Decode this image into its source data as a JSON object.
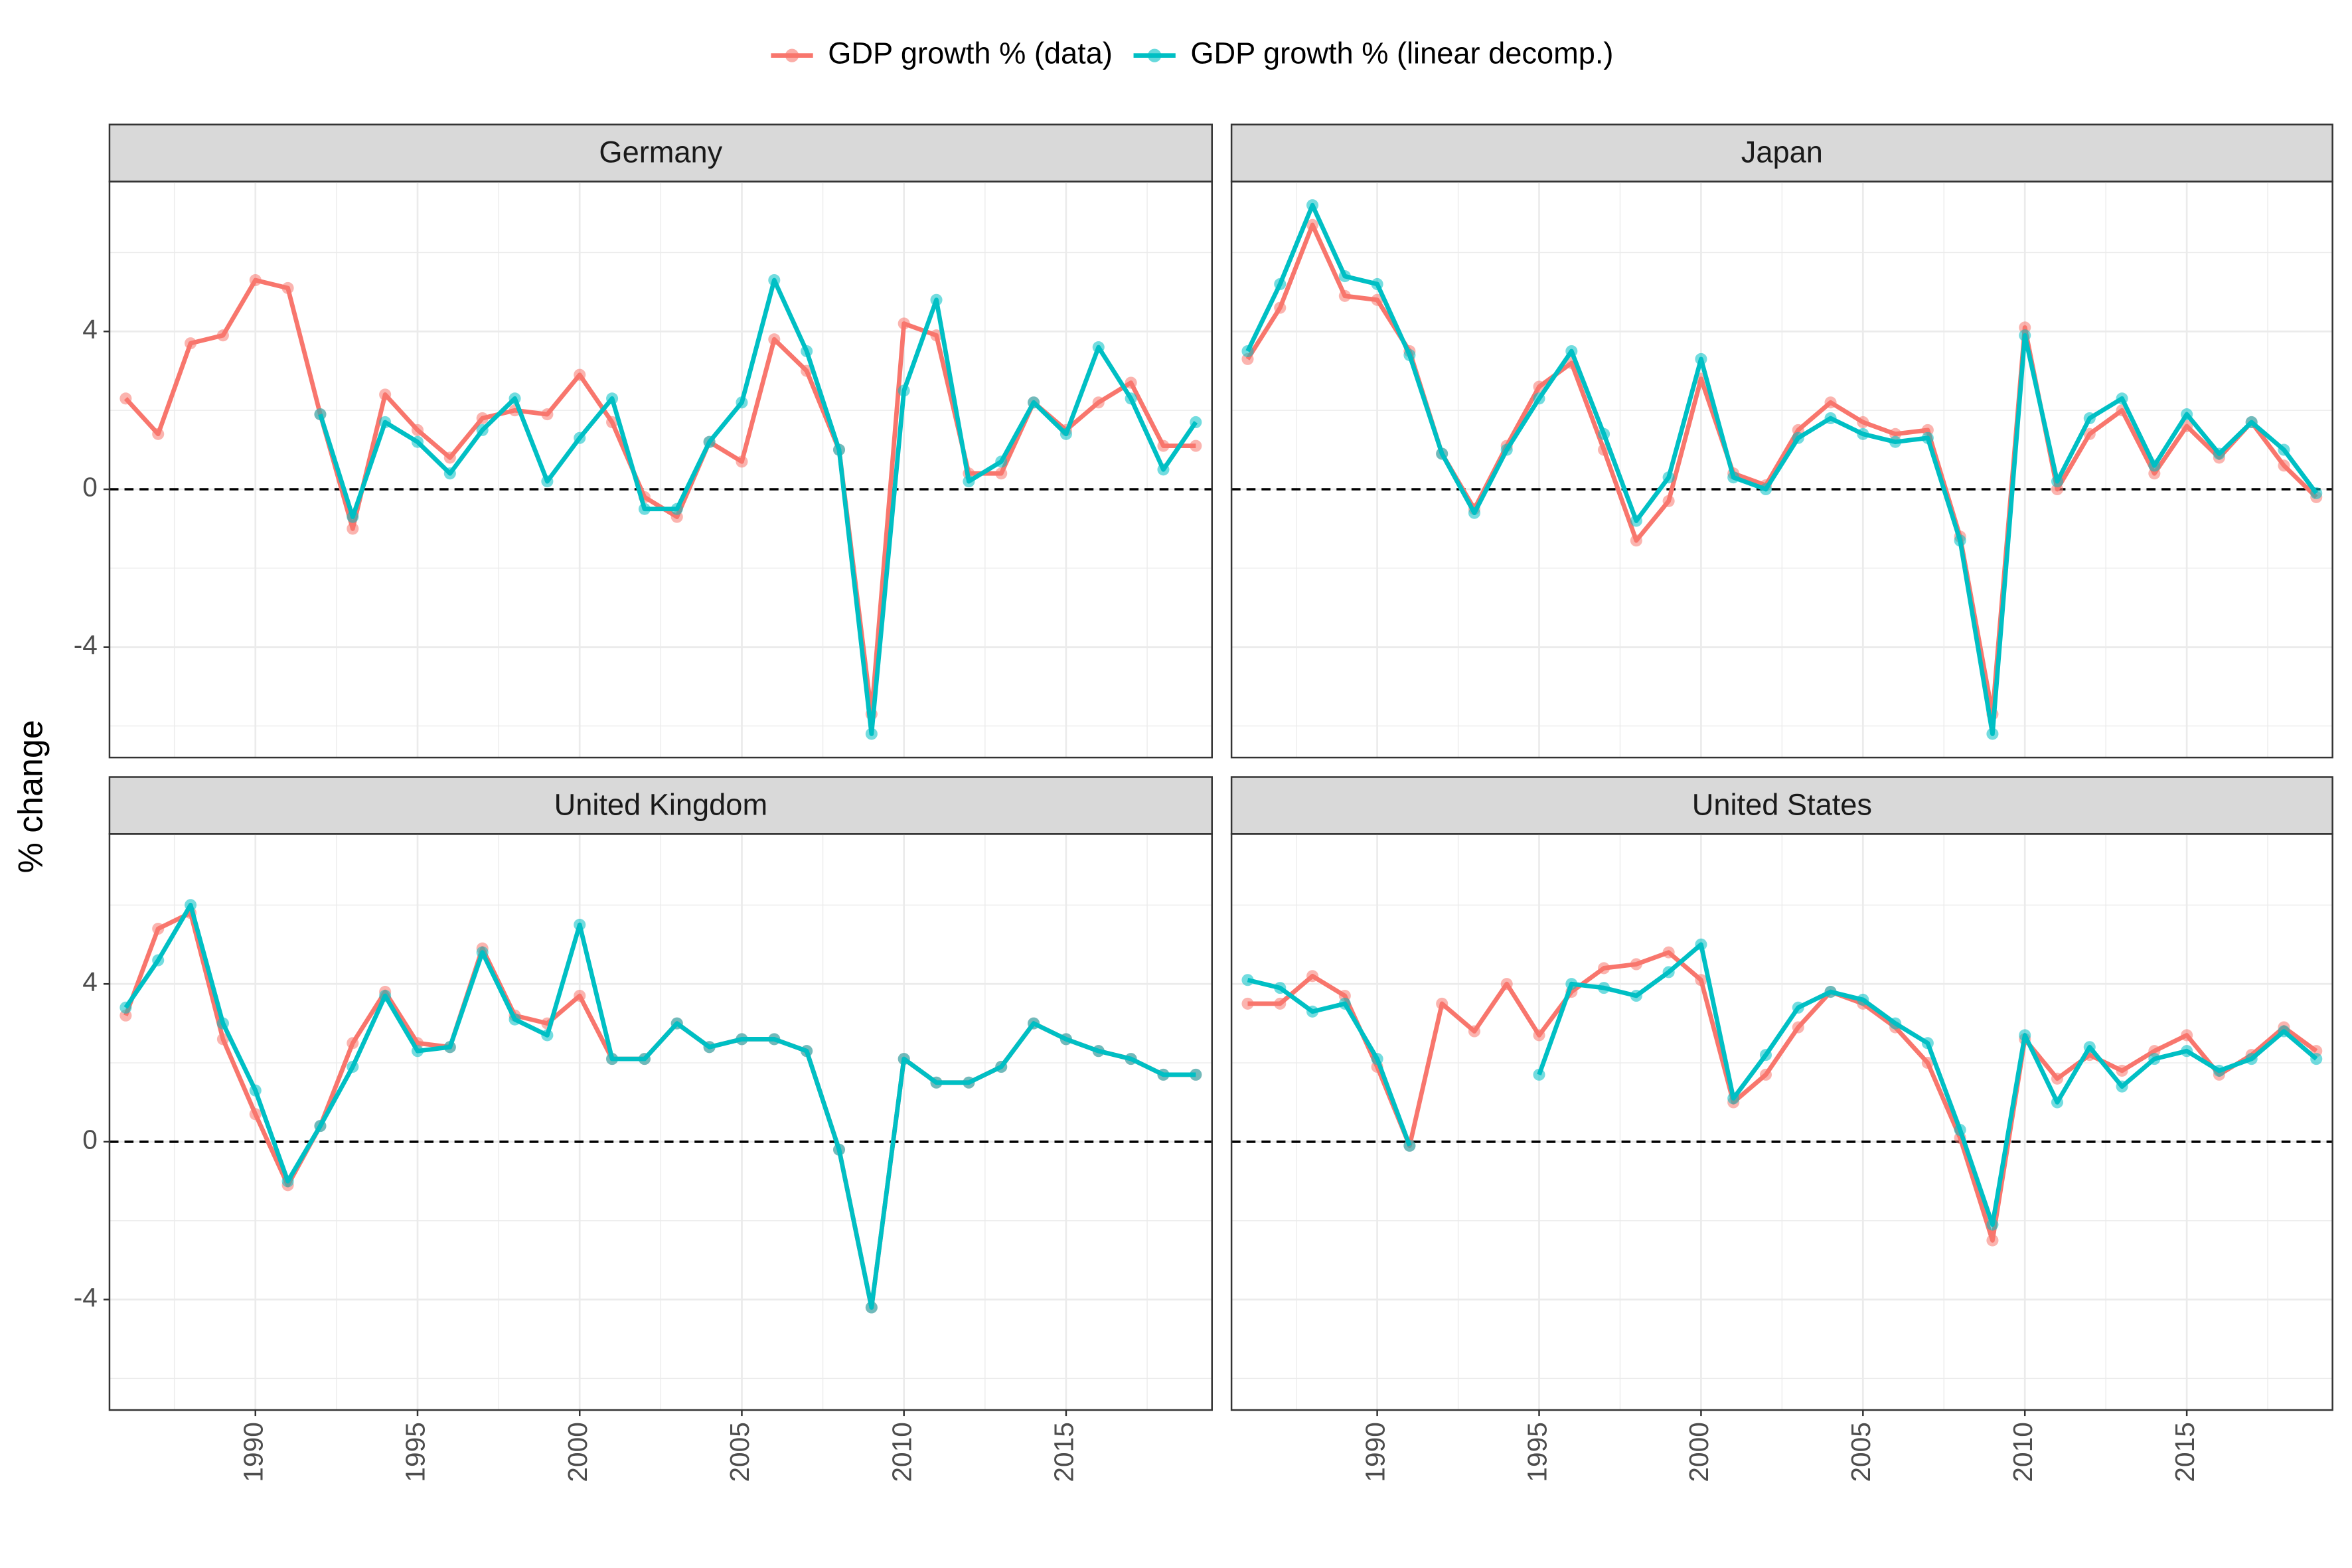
{
  "chart_data": {
    "type": "line",
    "ylabel": "% change",
    "legend": [
      {
        "name": "GDP growth % (data)",
        "color": "#F8766D"
      },
      {
        "name": "GDP growth % (linear decomp.)",
        "color": "#00BFC4"
      }
    ],
    "x": [
      1986,
      1987,
      1988,
      1989,
      1990,
      1991,
      1992,
      1993,
      1994,
      1995,
      1996,
      1997,
      1998,
      1999,
      2000,
      2001,
      2002,
      2003,
      2004,
      2005,
      2006,
      2007,
      2008,
      2009,
      2010,
      2011,
      2012,
      2013,
      2014,
      2015,
      2016,
      2017,
      2018,
      2019
    ],
    "xlim": [
      1985.5,
      2019.5
    ],
    "xticks": [
      1990,
      1995,
      2000,
      2005,
      2010,
      2015
    ],
    "ylim": [
      -6.8,
      7.8
    ],
    "yticks": [
      -4,
      0,
      4
    ],
    "hline": 0,
    "grid": true,
    "panels": [
      {
        "title": "Germany",
        "series": [
          {
            "values": [
              2.3,
              1.4,
              3.7,
              3.9,
              5.3,
              5.1,
              1.9,
              -1.0,
              2.4,
              1.5,
              0.8,
              1.8,
              2.0,
              1.9,
              2.9,
              1.7,
              -0.2,
              -0.7,
              1.2,
              0.7,
              3.8,
              3.0,
              1.0,
              -5.7,
              4.2,
              3.9,
              0.4,
              0.4,
              2.2,
              1.5,
              2.2,
              2.7,
              1.1,
              1.1
            ]
          },
          {
            "values": [
              null,
              null,
              null,
              null,
              null,
              null,
              1.9,
              -0.7,
              1.7,
              1.2,
              0.4,
              1.5,
              2.3,
              0.2,
              1.3,
              2.3,
              -0.5,
              -0.5,
              1.2,
              2.2,
              5.3,
              3.5,
              1.0,
              -6.2,
              2.5,
              4.8,
              0.2,
              0.7,
              2.2,
              1.4,
              3.6,
              2.3,
              0.5,
              1.7
            ]
          }
        ]
      },
      {
        "title": "Japan",
        "series": [
          {
            "values": [
              3.3,
              4.6,
              6.7,
              4.9,
              4.8,
              3.5,
              0.9,
              -0.5,
              1.1,
              2.6,
              3.2,
              1.0,
              -1.3,
              -0.3,
              2.8,
              0.4,
              0.1,
              1.5,
              2.2,
              1.7,
              1.4,
              1.5,
              -1.2,
              -5.7,
              4.1,
              0.0,
              1.4,
              2.0,
              0.4,
              1.6,
              0.8,
              1.7,
              0.6,
              -0.2
            ]
          },
          {
            "values": [
              3.5,
              5.2,
              7.2,
              5.4,
              5.2,
              3.4,
              0.9,
              -0.6,
              1.0,
              2.3,
              3.5,
              1.4,
              -0.8,
              0.3,
              3.3,
              0.3,
              0.0,
              1.3,
              1.8,
              1.4,
              1.2,
              1.3,
              -1.3,
              -6.2,
              3.9,
              0.2,
              1.8,
              2.3,
              0.6,
              1.9,
              0.9,
              1.7,
              1.0,
              -0.1
            ]
          }
        ]
      },
      {
        "title": "United Kingdom",
        "series": [
          {
            "values": [
              3.2,
              5.4,
              5.8,
              2.6,
              0.7,
              -1.1,
              0.4,
              2.5,
              3.8,
              2.5,
              2.4,
              4.9,
              3.2,
              3.0,
              3.7,
              2.1,
              2.1,
              3.0,
              2.4,
              2.6,
              2.6,
              2.3,
              -0.2,
              -4.2,
              2.1,
              1.5,
              1.5,
              1.9,
              3.0,
              2.6,
              2.3,
              2.1,
              1.7,
              1.7
            ]
          },
          {
            "values": [
              3.4,
              4.6,
              6.0,
              3.0,
              1.3,
              -1.0,
              0.4,
              1.9,
              3.7,
              2.3,
              2.4,
              4.8,
              3.1,
              2.7,
              5.5,
              2.1,
              2.1,
              3.0,
              2.4,
              2.6,
              2.6,
              2.3,
              -0.2,
              -4.2,
              2.1,
              1.5,
              1.5,
              1.9,
              3.0,
              2.6,
              2.3,
              2.1,
              1.7,
              1.7
            ]
          }
        ]
      },
      {
        "title": "United States",
        "series": [
          {
            "values": [
              3.5,
              3.5,
              4.2,
              3.7,
              1.9,
              -0.1,
              3.5,
              2.8,
              4.0,
              2.7,
              3.8,
              4.4,
              4.5,
              4.8,
              4.1,
              1.0,
              1.7,
              2.9,
              3.8,
              3.5,
              2.9,
              2.0,
              0.1,
              -2.5,
              2.6,
              1.6,
              2.2,
              1.8,
              2.3,
              2.7,
              1.7,
              2.2,
              2.9,
              2.3
            ]
          },
          {
            "values": [
              4.1,
              3.9,
              3.3,
              3.5,
              2.1,
              -0.1,
              null,
              null,
              null,
              1.7,
              4.0,
              3.9,
              3.7,
              4.3,
              5.0,
              1.1,
              2.2,
              3.4,
              3.8,
              3.6,
              3.0,
              2.5,
              0.3,
              -2.1,
              2.7,
              1.0,
              2.4,
              1.4,
              2.1,
              2.3,
              1.8,
              2.1,
              2.8,
              2.1
            ]
          }
        ]
      }
    ]
  }
}
